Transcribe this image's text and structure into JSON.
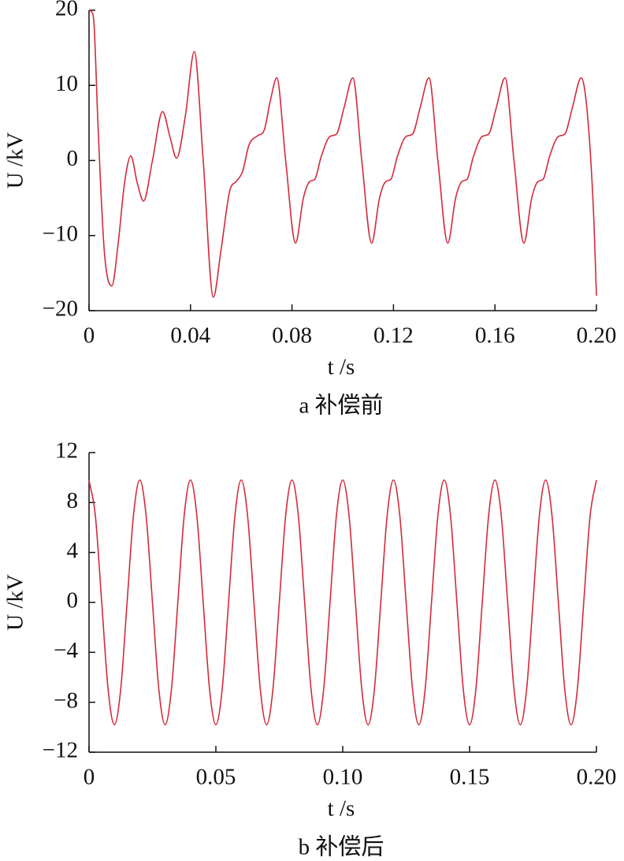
{
  "chart_data": [
    {
      "type": "line",
      "xlabel": "t /s",
      "ylabel": "U /kV",
      "caption": "a 补偿前",
      "color": "#d42a3a",
      "x": [
        0,
        0.001,
        0.002,
        0.0035,
        0.006,
        0.009,
        0.0115,
        0.014,
        0.0165,
        0.019,
        0.0215,
        0.025,
        0.029,
        0.032,
        0.0345,
        0.038,
        0.0415,
        0.045,
        0.049,
        0.052,
        0.0555,
        0.058,
        0.0605,
        0.063,
        0.0665,
        0.069,
        0.0715,
        0.074,
        0.0775,
        0.0814,
        0.0845,
        0.087,
        0.089,
        0.0915,
        0.095,
        0.0975,
        0.1005,
        0.104,
        0.1075,
        0.1114,
        0.1145,
        0.117,
        0.119,
        0.1215,
        0.125,
        0.1275,
        0.1305,
        0.134,
        0.1375,
        0.1414,
        0.1445,
        0.147,
        0.149,
        0.1515,
        0.155,
        0.1575,
        0.1605,
        0.164,
        0.1675,
        0.1714,
        0.1745,
        0.177,
        0.179,
        0.1815,
        0.185,
        0.1875,
        0.1905,
        0.194,
        0.1965,
        0.199,
        0.2
      ],
      "values": [
        20,
        19.8,
        18,
        5,
        -12,
        -16.7,
        -11,
        -3,
        0.6,
        -3,
        -5.4,
        0,
        6.5,
        3,
        0.3,
        6,
        14.5,
        0,
        -18.2,
        -12,
        -4,
        -2.8,
        -1.5,
        2,
        3.3,
        4,
        8,
        11,
        0,
        -11,
        -5,
        -2.8,
        -2.5,
        0.5,
        3.2,
        3.5,
        7,
        11,
        0,
        -11,
        -5,
        -2.8,
        -2.5,
        0.5,
        3.2,
        3.5,
        7,
        11,
        0,
        -11,
        -5,
        -2.8,
        -2.5,
        0.5,
        3.2,
        3.5,
        7,
        11,
        0,
        -11,
        -5,
        -2.8,
        -2.5,
        0.5,
        3.2,
        3.5,
        7,
        11,
        6,
        -8,
        -18
      ],
      "xlim": [
        0,
        0.2
      ],
      "ylim": [
        -20,
        20
      ],
      "xticks": [
        0,
        0.04,
        0.08,
        0.12,
        0.16,
        {
          "value": 0.2,
          "label": "0.20"
        }
      ],
      "yticks": [
        {
          "value": -20,
          "label": "−20"
        },
        {
          "value": -10,
          "label": "−10"
        },
        0,
        10,
        20
      ]
    },
    {
      "type": "line",
      "xlabel": "t /s",
      "ylabel": "U /kV",
      "caption": "b 补偿后",
      "color": "#d42a3a",
      "x": [
        0,
        0.0025,
        0.005,
        0.0075,
        0.01,
        0.0125,
        0.015,
        0.0175,
        0.02,
        0.0225,
        0.025,
        0.0275,
        0.03,
        0.0325,
        0.035,
        0.0375,
        0.04,
        0.0425,
        0.045,
        0.0475,
        0.05,
        0.0525,
        0.055,
        0.0575,
        0.06,
        0.0625,
        0.065,
        0.0675,
        0.07,
        0.0725,
        0.075,
        0.0775,
        0.08,
        0.0825,
        0.085,
        0.0875,
        0.09,
        0.0925,
        0.095,
        0.0975,
        0.1,
        0.1025,
        0.105,
        0.1075,
        0.11,
        0.1125,
        0.115,
        0.1175,
        0.12,
        0.1225,
        0.125,
        0.1275,
        0.13,
        0.1325,
        0.135,
        0.1375,
        0.14,
        0.1425,
        0.145,
        0.1475,
        0.15,
        0.1525,
        0.155,
        0.1575,
        0.16,
        0.1625,
        0.165,
        0.1675,
        0.17,
        0.1725,
        0.175,
        0.1775,
        0.18,
        0.1825,
        0.185,
        0.1875,
        0.19,
        0.1925,
        0.195,
        0.1975,
        0.2
      ],
      "values": [
        9.8,
        6.93,
        0,
        -6.93,
        -9.8,
        -6.93,
        0,
        6.93,
        9.8,
        6.93,
        0,
        -6.93,
        -9.8,
        -6.93,
        0,
        6.93,
        9.8,
        6.93,
        0,
        -6.93,
        -9.8,
        -6.93,
        0,
        6.93,
        9.8,
        6.93,
        0,
        -6.93,
        -9.8,
        -6.93,
        0,
        6.93,
        9.8,
        6.93,
        0,
        -6.93,
        -9.8,
        -6.93,
        0,
        6.93,
        9.8,
        6.93,
        0,
        -6.93,
        -9.8,
        -6.93,
        0,
        6.93,
        9.8,
        6.93,
        0,
        -6.93,
        -9.8,
        -6.93,
        0,
        6.93,
        9.8,
        6.93,
        0,
        -6.93,
        -9.8,
        -6.93,
        0,
        6.93,
        9.8,
        6.93,
        0,
        -6.93,
        -9.8,
        -6.93,
        0,
        6.93,
        9.8,
        6.93,
        0,
        -6.93,
        -9.8,
        -6.93,
        0,
        6.93,
        9.8
      ],
      "xlim": [
        0,
        0.2
      ],
      "ylim": [
        -12,
        12
      ],
      "xticks": [
        0,
        0.05,
        {
          "value": 0.1,
          "label": "0.10"
        },
        0.15,
        {
          "value": 0.2,
          "label": "0.20"
        }
      ],
      "yticks": [
        {
          "value": -12,
          "label": "−12"
        },
        {
          "value": -8,
          "label": "−8"
        },
        {
          "value": -4,
          "label": "−4"
        },
        0,
        4,
        8,
        12
      ]
    }
  ]
}
